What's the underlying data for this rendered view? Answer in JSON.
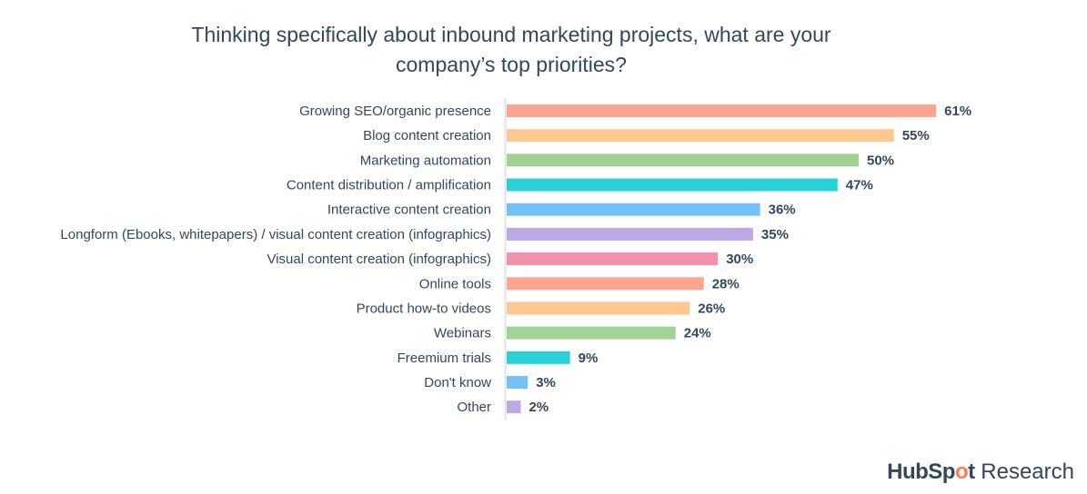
{
  "chart_data": {
    "type": "bar",
    "orientation": "horizontal",
    "title": "Thinking specifically about inbound marketing projects, what are your company’s top priorities?",
    "title_lines": [
      "Thinking specifically about inbound marketing projects, what are your",
      "company’s top priorities?"
    ],
    "categories": [
      "Growing SEO/organic presence",
      "Blog content creation",
      "Marketing automation",
      "Content distribution / amplification",
      "Interactive content creation",
      "Longform (Ebooks, whitepapers) / visual content creation (infographics)",
      "Visual content creation (infographics)",
      "Online tools",
      "Product how-to videos",
      "Webinars",
      "Freemium trials",
      "Don't know",
      "Other"
    ],
    "values": [
      61,
      55,
      50,
      47,
      36,
      35,
      30,
      28,
      26,
      24,
      9,
      3,
      2
    ],
    "value_labels": [
      "61%",
      "55%",
      "50%",
      "47%",
      "36%",
      "35%",
      "30%",
      "28%",
      "26%",
      "24%",
      "9%",
      "3%",
      "2%"
    ],
    "colors": [
      "#ffa58f",
      "#fcc890",
      "#a0d394",
      "#29d1d7",
      "#76c0f9",
      "#bea8e4",
      "#f291ae",
      "#ffa58f",
      "#fcc890",
      "#a0d394",
      "#29d1d7",
      "#76c0f9",
      "#bea8e4"
    ],
    "xlabel": "",
    "ylabel": "",
    "xlim": [
      0,
      61
    ],
    "grid": false,
    "unit": "%"
  },
  "branding": {
    "brand": "HubSpot",
    "brand_pre": "HubSp",
    "brand_o": "o",
    "brand_post": "t",
    "suffix": " Research"
  }
}
